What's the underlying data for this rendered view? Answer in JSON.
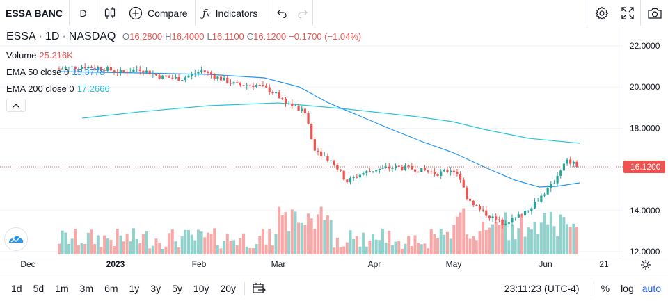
{
  "toolbar": {
    "symbol": "ESSA BANC",
    "interval": "D",
    "compare_label": "Compare",
    "indicators_label": "Indicators"
  },
  "legend": {
    "symbol": "ESSA",
    "interval": "1D",
    "exchange": "NASDAQ",
    "open_label": "O",
    "open": "16.2800",
    "high_label": "H",
    "high": "16.4000",
    "low_label": "L",
    "low": "16.1100",
    "close_label": "C",
    "close": "16.1200",
    "change": "−0.1700 (−1.04%)",
    "volume_label": "Volume",
    "volume": "25.216K",
    "ema50_label": "EMA 50 close 0",
    "ema50": "15.3778",
    "ema200_label": "EMA 200 close 0",
    "ema200": "17.2666"
  },
  "price_axis": {
    "labels": [
      "22.0000",
      "20.0000",
      "18.0000",
      "16.1200",
      "14.0000",
      "12.0000"
    ],
    "last_price": "16.1200"
  },
  "time_axis": {
    "labels": [
      "Dec",
      "2023",
      "Feb",
      "Mar",
      "Apr",
      "May",
      "Jun",
      "21"
    ]
  },
  "bottom": {
    "ranges": [
      "1d",
      "5d",
      "1m",
      "3m",
      "6m",
      "1y",
      "3y",
      "5y",
      "10y",
      "20y"
    ],
    "time": "23:11:23 (UTC-4)",
    "percent": "%",
    "log": "log",
    "auto": "auto"
  },
  "colors": {
    "up": "#26a69a",
    "down": "#ef5350",
    "ema50": "#2196f3",
    "ema200": "#26c6da",
    "accent": "#2962ff"
  },
  "icons": [
    "candles-icon",
    "plus-circle-icon",
    "fx-icon",
    "undo-icon",
    "redo-icon",
    "settings-gear-icon",
    "fullscreen-icon",
    "camera-icon",
    "chart-settings-icon",
    "date-range-icon",
    "collapse-chevron-icon",
    "tradingview-logo-icon"
  ]
}
